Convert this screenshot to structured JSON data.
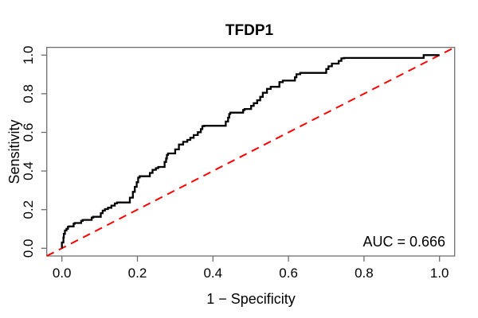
{
  "chart_data": {
    "type": "line",
    "subtype": "roc_step_curve",
    "title": "TFDP1",
    "xlabel": "1 − Specificity",
    "ylabel": "Sensitivity",
    "xlim": [
      0,
      1
    ],
    "ylim": [
      0,
      1
    ],
    "x_ticks": [
      "0.0",
      "0.2",
      "0.4",
      "0.6",
      "0.8",
      "1.0"
    ],
    "y_ticks": [
      "0.0",
      "0.2",
      "0.4",
      "0.6",
      "0.8",
      "1.0"
    ],
    "grid": false,
    "legend": false,
    "auc": 0.666,
    "annotation": {
      "text": "AUC = 0.666",
      "position": "bottom-right"
    },
    "reference_line": {
      "name": "chance diagonal",
      "style": "dashed",
      "color": "#ff0000",
      "from": [
        0,
        0
      ],
      "to": [
        1,
        1
      ]
    },
    "series": [
      {
        "name": "ROC curve",
        "color": "#000000",
        "step": "vh",
        "points": [
          [
            0,
            0
          ],
          [
            0.004,
            0.03
          ],
          [
            0.005,
            0.055
          ],
          [
            0.008,
            0.075
          ],
          [
            0.012,
            0.092
          ],
          [
            0.016,
            0.101
          ],
          [
            0.019,
            0.112
          ],
          [
            0.031,
            0.113
          ],
          [
            0.034,
            0.127
          ],
          [
            0.051,
            0.131
          ],
          [
            0.055,
            0.142
          ],
          [
            0.079,
            0.147
          ],
          [
            0.083,
            0.159
          ],
          [
            0.103,
            0.163
          ],
          [
            0.108,
            0.182
          ],
          [
            0.114,
            0.195
          ],
          [
            0.122,
            0.203
          ],
          [
            0.131,
            0.21
          ],
          [
            0.14,
            0.221
          ],
          [
            0.146,
            0.232
          ],
          [
            0.18,
            0.237
          ],
          [
            0.188,
            0.262
          ],
          [
            0.193,
            0.292
          ],
          [
            0.198,
            0.318
          ],
          [
            0.202,
            0.342
          ],
          [
            0.206,
            0.366
          ],
          [
            0.233,
            0.373
          ],
          [
            0.24,
            0.39
          ],
          [
            0.249,
            0.406
          ],
          [
            0.255,
            0.415
          ],
          [
            0.272,
            0.421
          ],
          [
            0.276,
            0.447
          ],
          [
            0.278,
            0.465
          ],
          [
            0.281,
            0.483
          ],
          [
            0.3,
            0.491
          ],
          [
            0.31,
            0.512
          ],
          [
            0.321,
            0.537
          ],
          [
            0.332,
            0.551
          ],
          [
            0.34,
            0.561
          ],
          [
            0.349,
            0.572
          ],
          [
            0.36,
            0.586
          ],
          [
            0.368,
            0.601
          ],
          [
            0.372,
            0.617
          ],
          [
            0.377,
            0.632
          ],
          [
            0.434,
            0.634
          ],
          [
            0.44,
            0.656
          ],
          [
            0.443,
            0.676
          ],
          [
            0.446,
            0.695
          ],
          [
            0.48,
            0.702
          ],
          [
            0.484,
            0.716
          ],
          [
            0.501,
            0.721
          ],
          [
            0.508,
            0.737
          ],
          [
            0.517,
            0.751
          ],
          [
            0.525,
            0.766
          ],
          [
            0.532,
            0.784
          ],
          [
            0.543,
            0.805
          ],
          [
            0.553,
            0.825
          ],
          [
            0.576,
            0.836
          ],
          [
            0.585,
            0.86
          ],
          [
            0.617,
            0.868
          ],
          [
            0.621,
            0.885
          ],
          [
            0.631,
            0.901
          ],
          [
            0.7,
            0.908
          ],
          [
            0.706,
            0.928
          ],
          [
            0.715,
            0.942
          ],
          [
            0.733,
            0.956
          ],
          [
            0.74,
            0.97
          ],
          [
            0.747,
            0.983
          ],
          [
            0.958,
            0.985
          ],
          [
            0.962,
            1.0
          ],
          [
            1.0,
            1.0
          ]
        ]
      }
    ]
  }
}
